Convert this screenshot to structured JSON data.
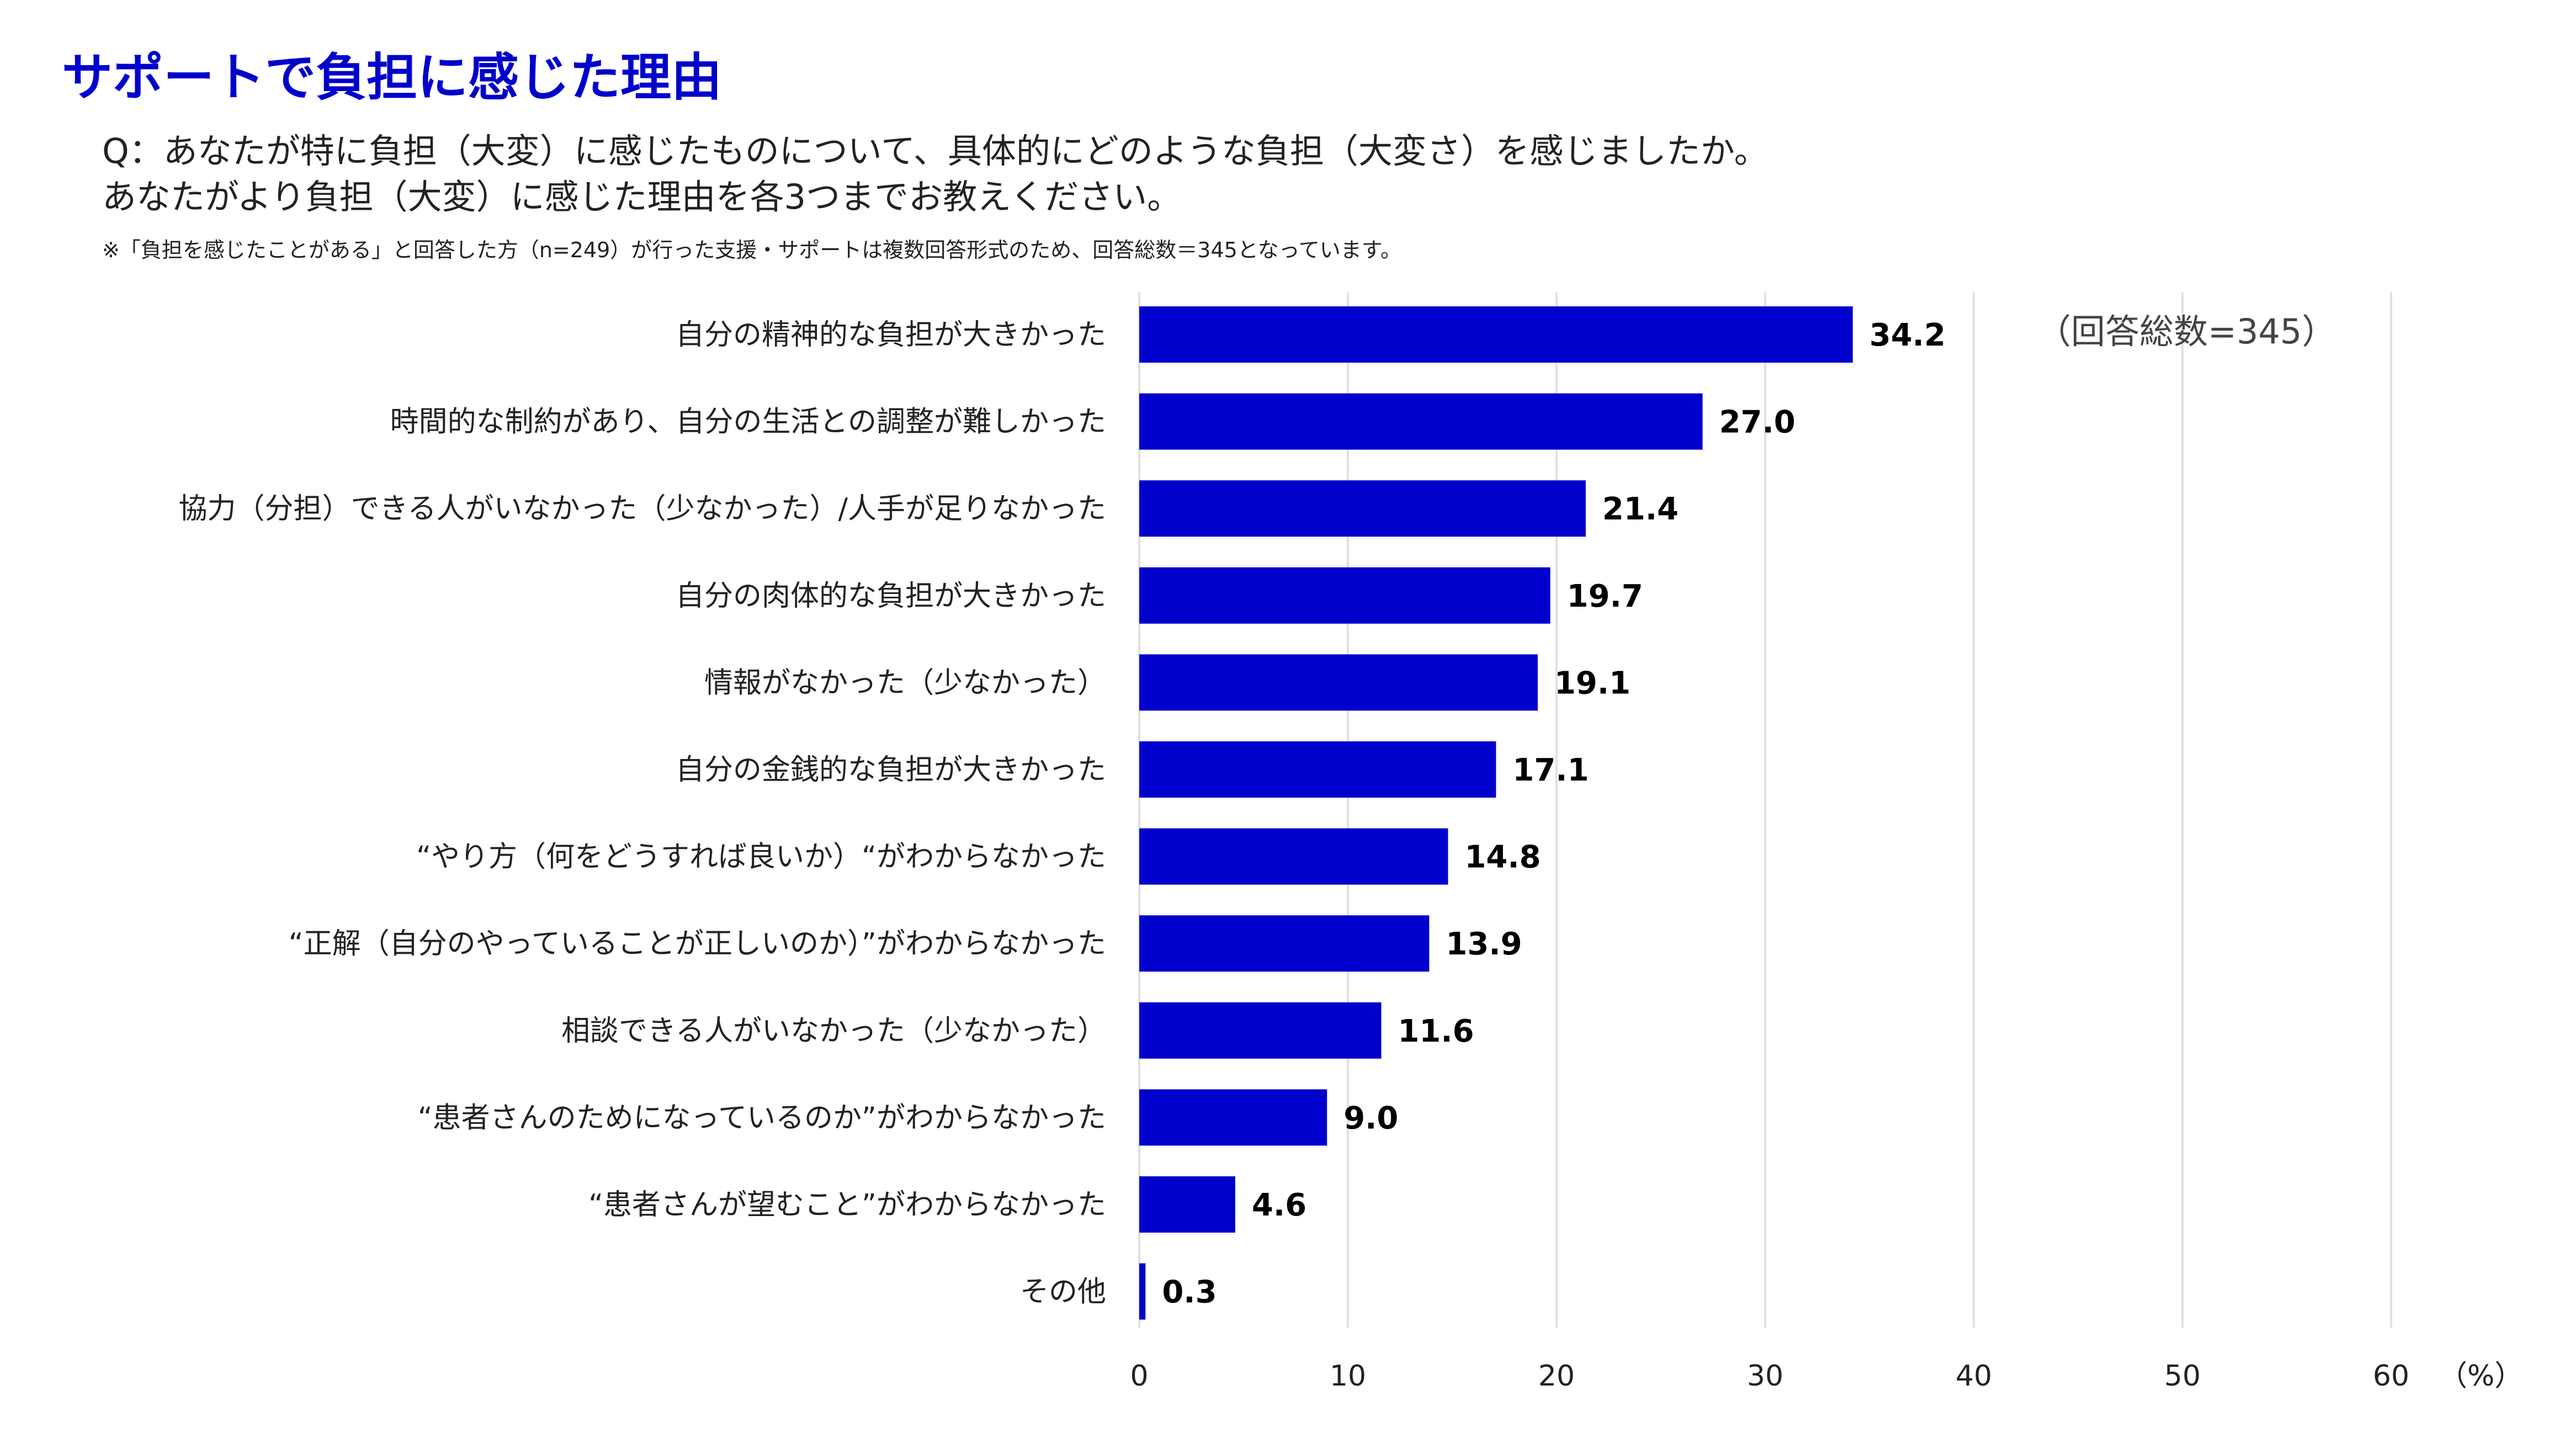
{
  "title": "サポートで負担に感じた理由",
  "question_line1": "Q：あなたが特に負担（大変）に感じたものについて、具体的にどのような負担（大変さ）を感じましたか。",
  "question_line2": "あなたがより負担（大変）に感じた理由を各3つまでお教えください。",
  "note": "※「負担を感じたことがある」と回答した方（n=249）が行った支援・サポートは複数回答形式のため、回答総数＝345となっています。",
  "colors": {
    "bar": "#0000cc",
    "grid": "#e0e0e0"
  },
  "chart_data": {
    "type": "bar",
    "orientation": "horizontal",
    "categories": [
      "自分の精神的な負担が大きかった",
      "時間的な制約があり、自分の生活との調整が難しかった",
      "協力（分担）できる人がいなかった（少なかった）/人手が足りなかった",
      "自分の肉体的な負担が大きかった",
      "情報がなかった（少なかった）",
      "自分の金銭的な負担が大きかった",
      "“やり方（何をどうすれば良いか）“がわからなかった",
      "“正解（自分のやっていることが正しいのか）”がわからなかった",
      "相談できる人がいなかった（少なかった）",
      "“患者さんのためになっているのか”がわからなかった",
      "“患者さんが望むこと”がわからなかった",
      "その他"
    ],
    "values": [
      34.2,
      27.0,
      21.4,
      19.7,
      19.1,
      17.1,
      14.8,
      13.9,
      11.6,
      9.0,
      4.6,
      0.3
    ],
    "value_labels": [
      "34.2",
      "27.0",
      "21.4",
      "19.7",
      "19.1",
      "17.1",
      "14.8",
      "13.9",
      "11.6",
      "9.0",
      "4.6",
      "0.3"
    ],
    "xlim": [
      0,
      60
    ],
    "xticks": [
      "0",
      "10",
      "20",
      "30",
      "40",
      "50",
      "60"
    ],
    "xunit": "（%）",
    "annotation": "（回答総数=345）",
    "grid": true
  }
}
